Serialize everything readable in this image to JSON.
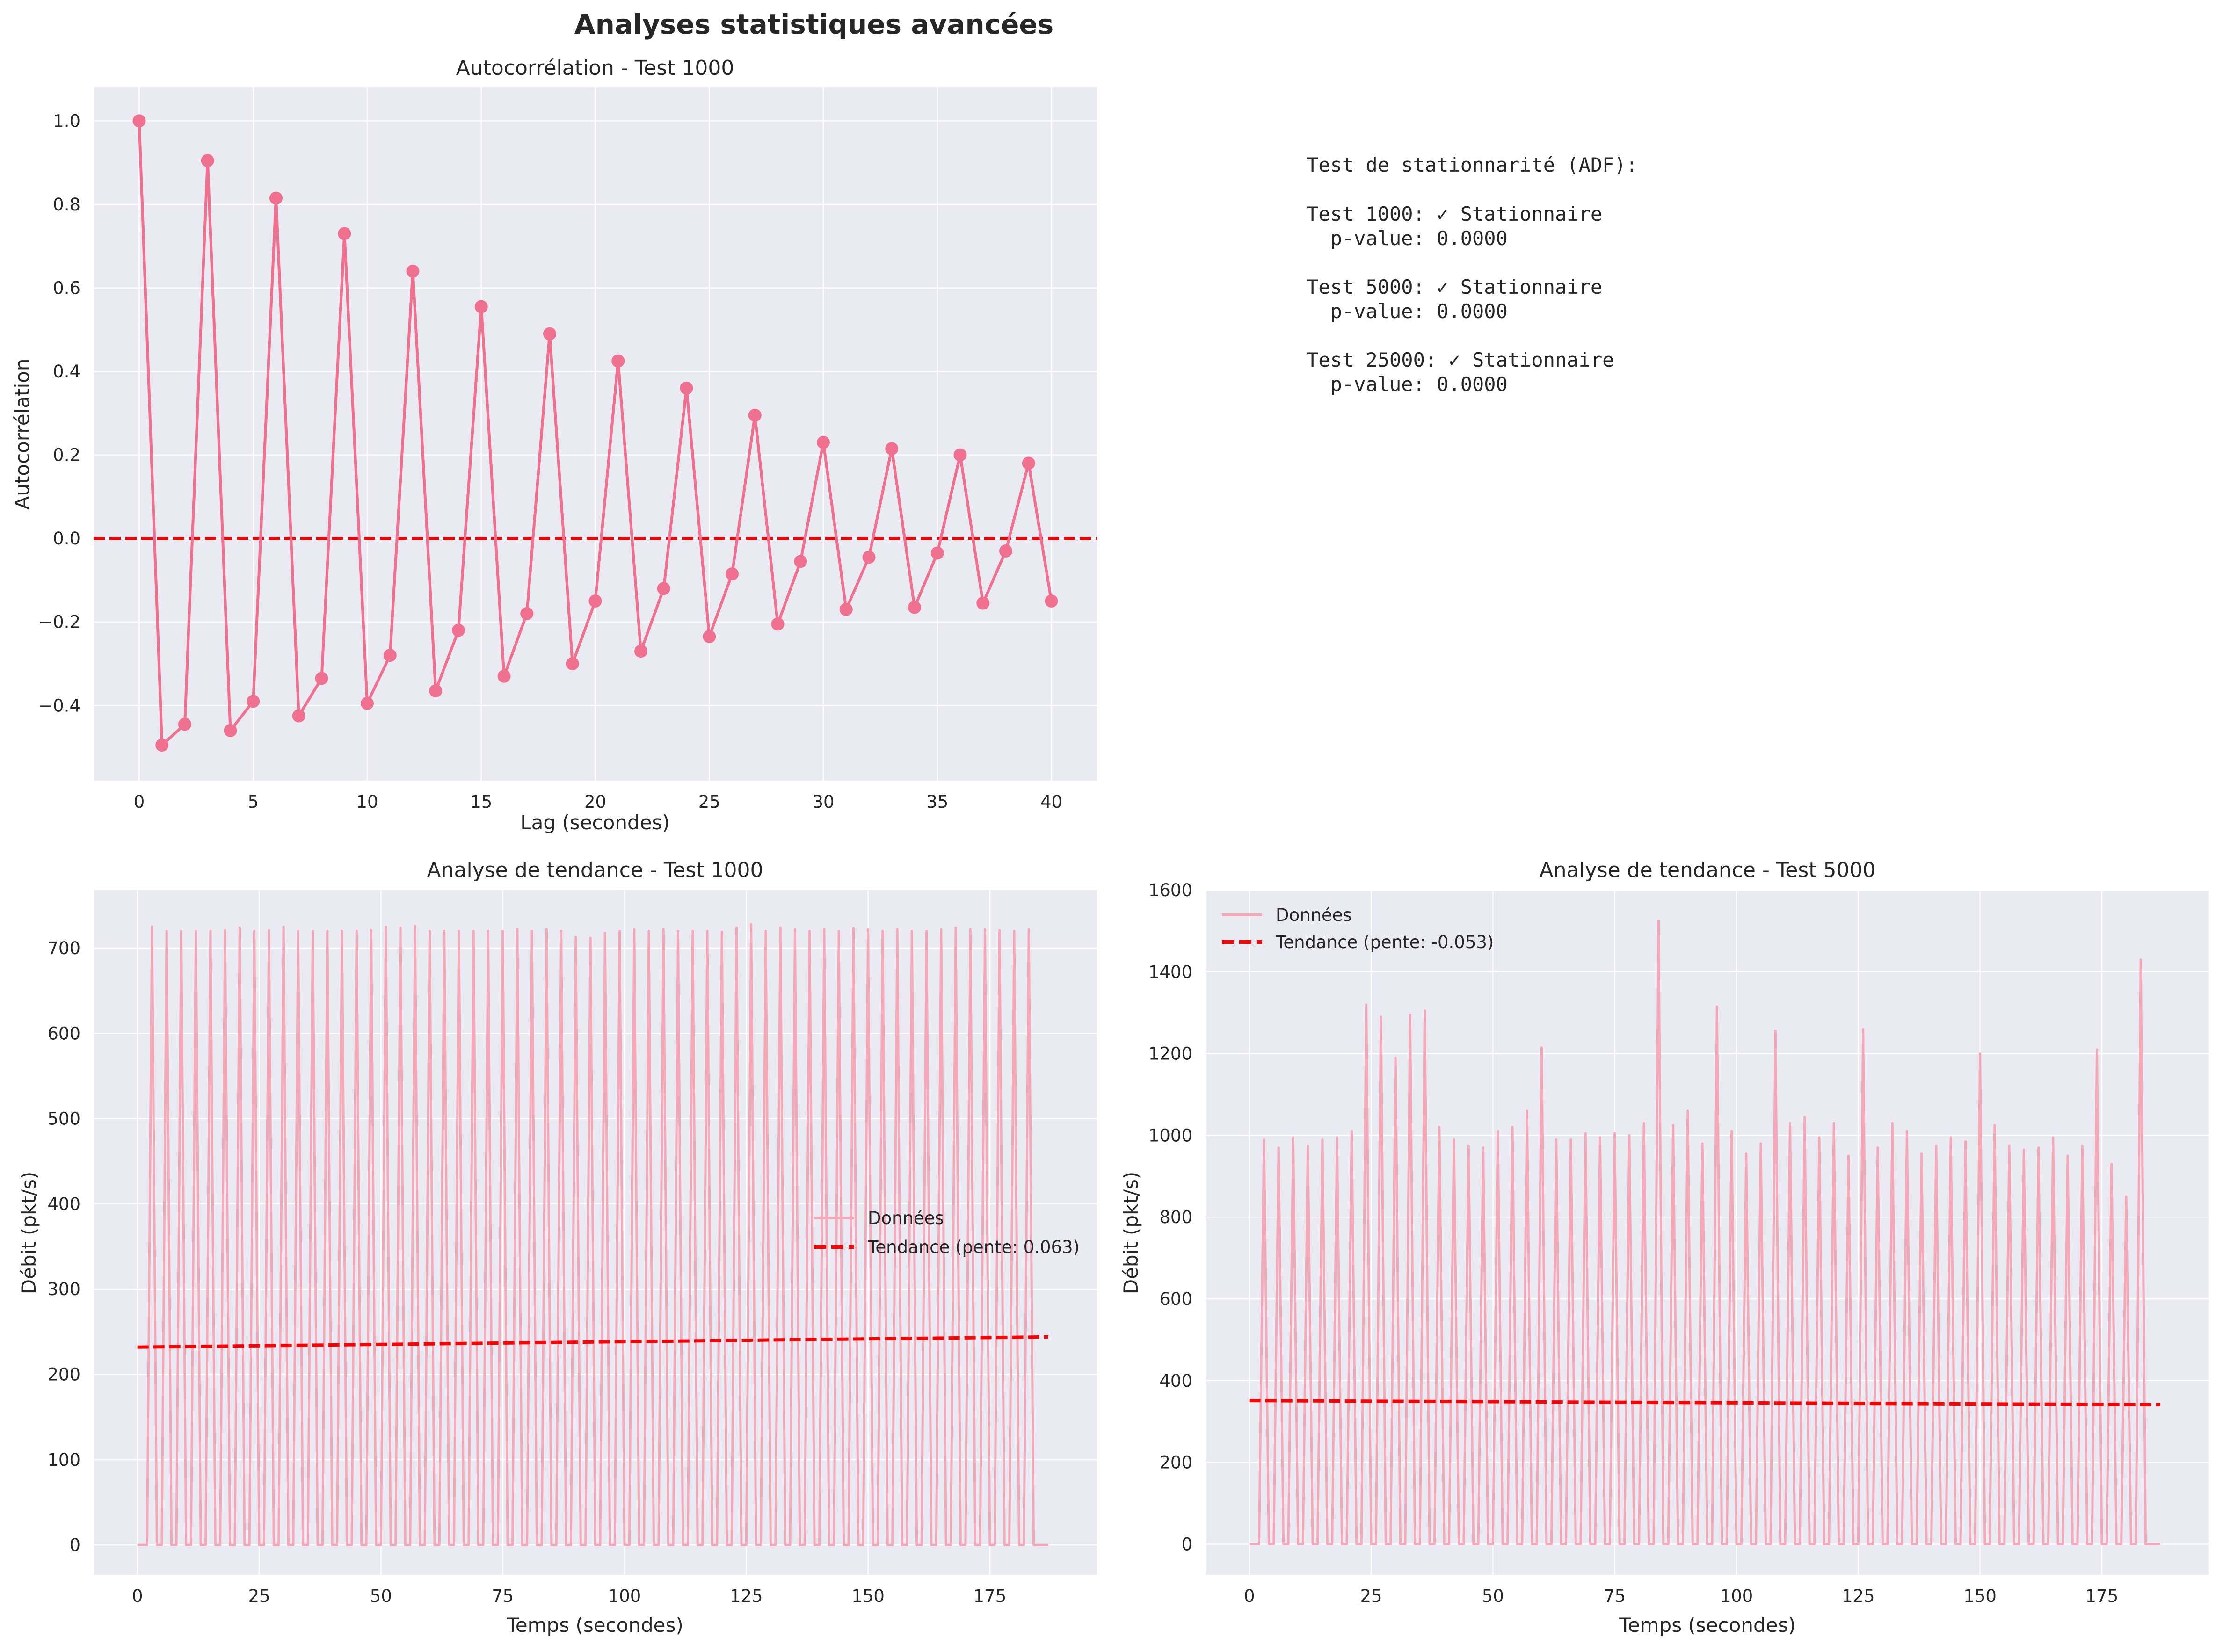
{
  "figure": {
    "title": "Analyses statistiques avancées"
  },
  "colors": {
    "series": "#f07090",
    "series_light": "#f4a8b8",
    "trend": "#ff0000",
    "panel_bg": "#eaeaf2",
    "grid": "#ffffff"
  },
  "chart_data": [
    {
      "type": "line",
      "title": "Autocorrélation - Test 1000",
      "xlabel": "Lag (secondes)",
      "ylabel": "Autocorrélation",
      "xlim": [
        -2,
        42
      ],
      "ylim": [
        -0.58,
        1.08
      ],
      "xticks": [
        0,
        5,
        10,
        15,
        20,
        25,
        30,
        35,
        40
      ],
      "yticks": [
        -0.4,
        -0.2,
        0.0,
        0.2,
        0.4,
        0.6,
        0.8,
        1.0
      ],
      "ytick_labels": [
        "−0.4",
        "−0.2",
        "0.0",
        "0.2",
        "0.4",
        "0.6",
        "0.8",
        "1.0"
      ],
      "grid": true,
      "reference_line": {
        "y": 0.0,
        "style": "dashed",
        "color": "#ff0000"
      },
      "series": [
        {
          "x": [
            0,
            1,
            2,
            3,
            4,
            5,
            6,
            7,
            8,
            9,
            10,
            11,
            12,
            13,
            14,
            15,
            16,
            17,
            18,
            19,
            20,
            21,
            22,
            23,
            24,
            25,
            26,
            27,
            28,
            29,
            30,
            31,
            32,
            33,
            34,
            35,
            36,
            37,
            38,
            39,
            40
          ],
          "values": [
            1.0,
            -0.495,
            -0.445,
            0.905,
            -0.46,
            -0.39,
            0.815,
            -0.425,
            -0.335,
            0.73,
            -0.395,
            -0.28,
            0.64,
            -0.365,
            -0.22,
            0.555,
            -0.33,
            -0.18,
            0.49,
            -0.3,
            -0.15,
            0.425,
            -0.27,
            -0.12,
            0.36,
            -0.235,
            -0.085,
            0.295,
            -0.205,
            -0.055,
            0.23,
            -0.17,
            -0.045,
            0.215,
            -0.165,
            -0.035,
            0.2,
            -0.155,
            -0.03,
            0.18,
            -0.15
          ]
        }
      ]
    },
    {
      "type": "line",
      "title": "Analyse de tendance - Test 1000",
      "xlabel": "Temps (secondes)",
      "ylabel": "Débit (pkt/s)",
      "xlim": [
        -9,
        197
      ],
      "ylim": [
        -35,
        768
      ],
      "xticks": [
        0,
        25,
        50,
        75,
        100,
        125,
        150,
        175
      ],
      "yticks": [
        0,
        100,
        200,
        300,
        400,
        500,
        600,
        700
      ],
      "grid": true,
      "legend": {
        "placement": "center-right"
      },
      "data_pattern": {
        "start": 0,
        "end": 187,
        "period": 3,
        "first_peak": 3,
        "peak_values": [
          725,
          720,
          720,
          720,
          720,
          721,
          724,
          720,
          721,
          725,
          720,
          720,
          720,
          720,
          720,
          721,
          725,
          724,
          726,
          720,
          720,
          720,
          720,
          720,
          720,
          722,
          720,
          722,
          720,
          713,
          712,
          718,
          720,
          722,
          720,
          722,
          720,
          720,
          720,
          719,
          724,
          728,
          720,
          724,
          722,
          720,
          722,
          720,
          723,
          722,
          720,
          722,
          720,
          720,
          722,
          724,
          722,
          722,
          721,
          720,
          722
        ]
      },
      "series": [
        {
          "name": "Données",
          "style": "solid"
        },
        {
          "name": "Tendance (pente: 0.063)",
          "style": "dashed",
          "x": [
            0,
            187
          ],
          "values": [
            232,
            244
          ]
        }
      ]
    },
    {
      "type": "line",
      "title": "Analyse de tendance - Test 5000",
      "xlabel": "Temps (secondes)",
      "ylabel": "Débit (pkt/s)",
      "xlim": [
        -9,
        197
      ],
      "ylim": [
        -75,
        1600
      ],
      "xticks": [
        0,
        25,
        50,
        75,
        100,
        125,
        150,
        175
      ],
      "yticks": [
        0,
        200,
        400,
        600,
        800,
        1000,
        1200,
        1400,
        1600
      ],
      "grid": true,
      "legend": {
        "placement": "top-left"
      },
      "data_pattern": {
        "start": 0,
        "end": 187,
        "period": 3,
        "first_peak": 3,
        "peak_values": [
          990,
          970,
          995,
          975,
          990,
          995,
          1010,
          1320,
          1290,
          1190,
          1295,
          1305,
          1020,
          990,
          975,
          970,
          1010,
          1020,
          1060,
          1215,
          990,
          990,
          1005,
          995,
          1005,
          1000,
          1030,
          1525,
          1025,
          1060,
          980,
          1315,
          1010,
          955,
          980,
          1255,
          1030,
          1045,
          995,
          1030,
          950,
          1260,
          970,
          1030,
          1010,
          955,
          975,
          995,
          985,
          1200,
          1025,
          975,
          965,
          970,
          995,
          950,
          975,
          1210,
          930,
          850,
          1430
        ]
      },
      "series": [
        {
          "name": "Données",
          "style": "solid"
        },
        {
          "name": "Tendance (pente: -0.053)",
          "style": "dashed",
          "x": [
            0,
            187
          ],
          "values": [
            351,
            341
          ]
        }
      ]
    }
  ],
  "stationarity_panel": {
    "title": "Test de stationnarité (ADF):",
    "tests": [
      {
        "name": "Test 1000: ✓ Stationnaire",
        "pvalue": "  p-value: 0.0000"
      },
      {
        "name": "Test 5000: ✓ Stationnaire",
        "pvalue": "  p-value: 0.0000"
      },
      {
        "name": "Test 25000: ✓ Stationnaire",
        "pvalue": "  p-value: 0.0000"
      }
    ]
  }
}
